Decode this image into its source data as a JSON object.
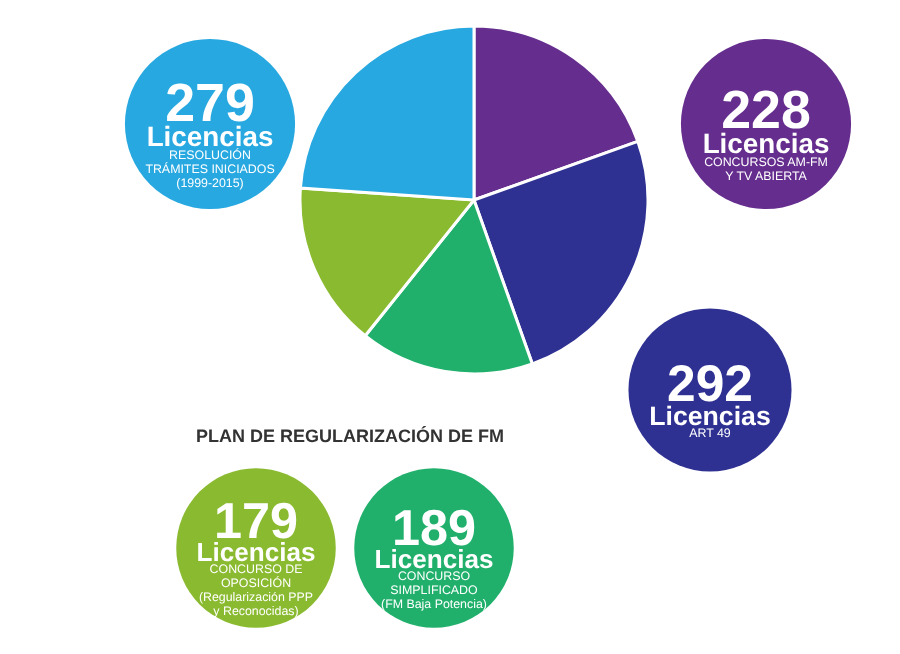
{
  "chart_data": {
    "type": "pie",
    "categories": [
      "Licencias\nCONCURSOS AM-FM\nY TV ABIERTA",
      "Licencias\nART 49",
      "Licencias\nCONCURSO\nSIMPLIFICADO\n(FM Baja Potencia)",
      "Licencias\nCONCURSO DE\nOPOSICIÓN\n(Regularización PPP\ny Reconocidas)",
      "Licencias\nRESOLUCIÓN\nTRÁMITES INICIADOS\n(1999-2015)"
    ],
    "values": [
      228,
      292,
      189,
      179,
      279
    ],
    "colors": [
      "#652d8e",
      "#2e3192",
      "#20b06c",
      "#8aba2f",
      "#27a8e0"
    ],
    "data_labels": true,
    "annotations": [
      "PLAN DE REGULARIZACIÓN DE FM"
    ]
  }
}
